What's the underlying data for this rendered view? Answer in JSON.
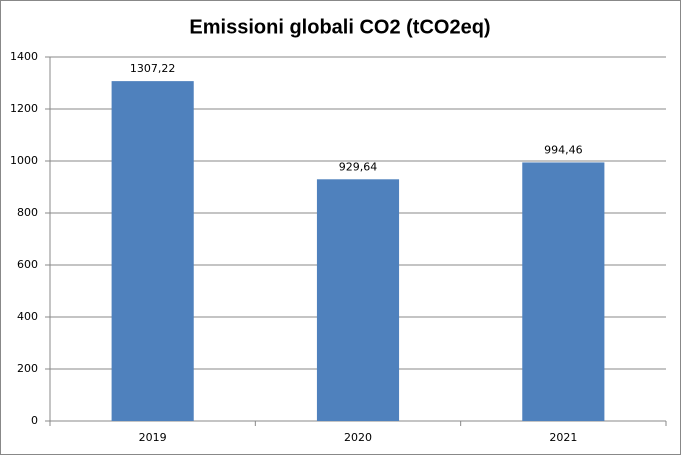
{
  "chart_data": {
    "type": "bar",
    "title": "Emissioni globali CO2 (tCO2eq)",
    "categories": [
      "2019",
      "2020",
      "2021"
    ],
    "values": [
      1307.22,
      929.64,
      994.46
    ],
    "value_labels": [
      "1307,22",
      "929,64",
      "994,46"
    ],
    "color": "#4f81bd",
    "ylim": [
      0,
      1400
    ],
    "yticks": [
      0,
      200,
      400,
      600,
      800,
      1000,
      1200,
      1400
    ],
    "grid": true
  }
}
